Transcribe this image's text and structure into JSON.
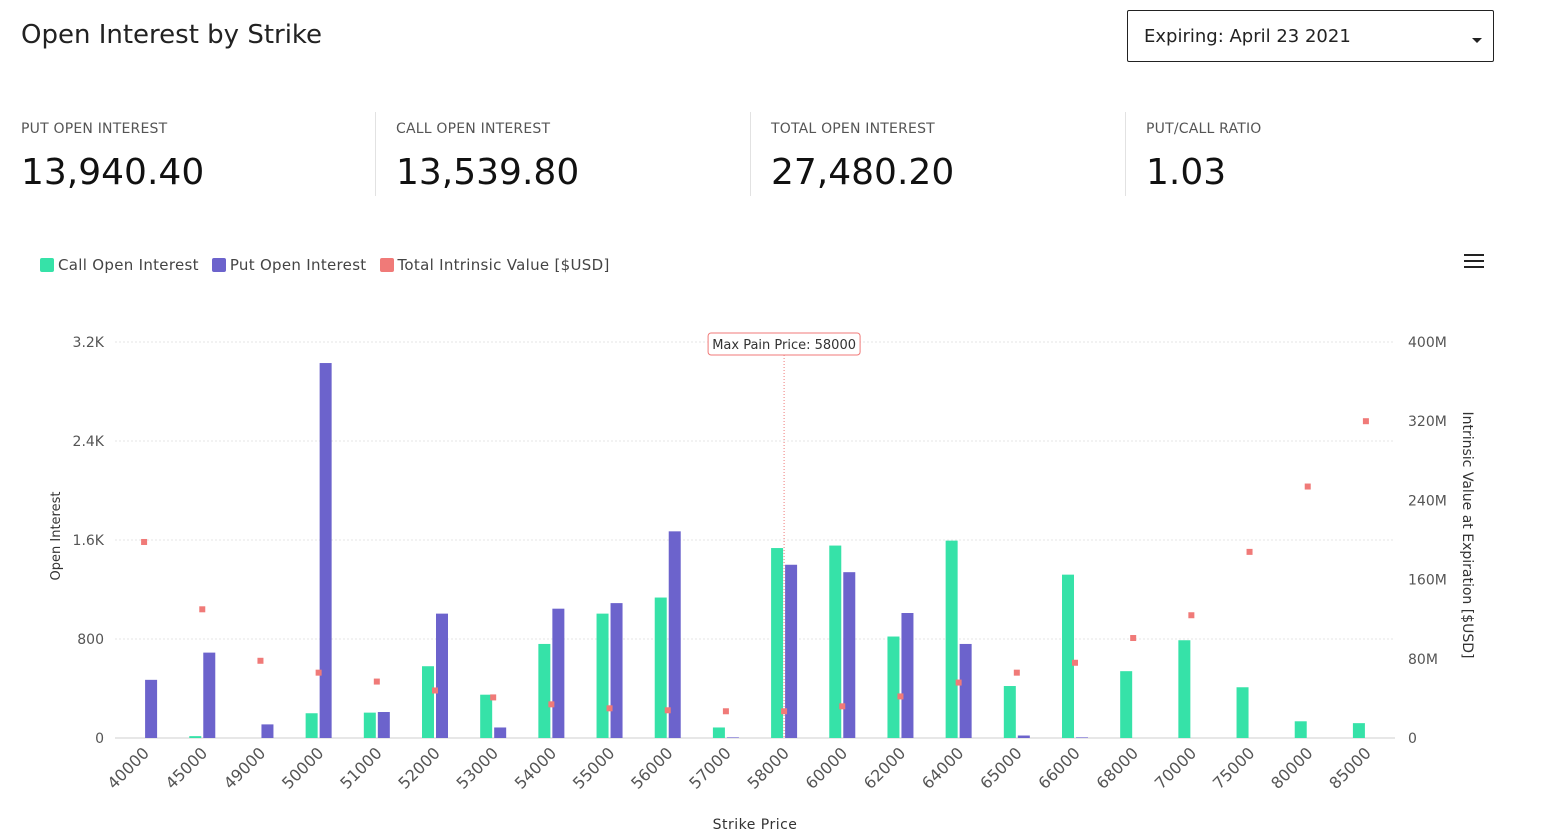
{
  "header": {
    "title": "Open Interest by Strike",
    "expiry_select_value": "Expiring: April 23 2021"
  },
  "stats": [
    {
      "label": "PUT OPEN INTEREST",
      "value": "13,940.40"
    },
    {
      "label": "CALL OPEN INTEREST",
      "value": "13,539.80"
    },
    {
      "label": "TOTAL OPEN INTEREST",
      "value": "27,480.20"
    },
    {
      "label": "PUT/CALL RATIO",
      "value": "1.03"
    }
  ],
  "colors": {
    "call": "#36e2a8",
    "put": "#6c63cc",
    "intrinsic": "#f07a78",
    "annotation": "#f07a78"
  },
  "chart_data": {
    "type": "bar",
    "xlabel": "Strike Price",
    "ylabel": "Open Interest",
    "y2label": "Intrinsic Value at Expiration [$USD]",
    "categories": [
      "40000",
      "45000",
      "49000",
      "50000",
      "51000",
      "52000",
      "53000",
      "54000",
      "55000",
      "56000",
      "57000",
      "58000",
      "60000",
      "62000",
      "64000",
      "65000",
      "66000",
      "68000",
      "70000",
      "75000",
      "80000",
      "85000"
    ],
    "ylim": [
      0,
      3200
    ],
    "yticks": [
      0,
      800,
      1600,
      2400,
      3200
    ],
    "ytick_labels": [
      "0",
      "800",
      "1.6K",
      "2.4K",
      "3.2K"
    ],
    "y2lim": [
      0,
      400
    ],
    "y2ticks": [
      0,
      80,
      160,
      240,
      320,
      400
    ],
    "y2tick_labels": [
      "0",
      "80M",
      "160M",
      "240M",
      "320M",
      "400M"
    ],
    "grid": true,
    "legend_position": "top-left",
    "series": [
      {
        "name": "Call Open Interest",
        "axis": "left",
        "values": [
          0,
          15,
          0,
          200,
          205,
          580,
          350,
          760,
          1005,
          1135,
          85,
          1535,
          1555,
          820,
          1595,
          420,
          1320,
          540,
          790,
          410,
          135,
          120
        ]
      },
      {
        "name": "Put Open Interest",
        "axis": "left",
        "values": [
          470,
          690,
          110,
          3030,
          210,
          1005,
          85,
          1045,
          1090,
          1670,
          5,
          1400,
          1340,
          1010,
          760,
          20,
          5,
          0,
          0,
          0,
          0,
          0
        ]
      },
      {
        "name": "Total Intrinsic Value [$USD]",
        "axis": "right",
        "values": [
          198,
          130,
          78,
          66,
          57,
          48,
          41,
          34,
          30,
          28,
          27,
          27,
          32,
          42,
          56,
          66,
          76,
          101,
          124,
          188,
          254,
          320
        ]
      }
    ],
    "annotation": {
      "category": "58000",
      "label": "Max Pain Price: 58000"
    }
  }
}
